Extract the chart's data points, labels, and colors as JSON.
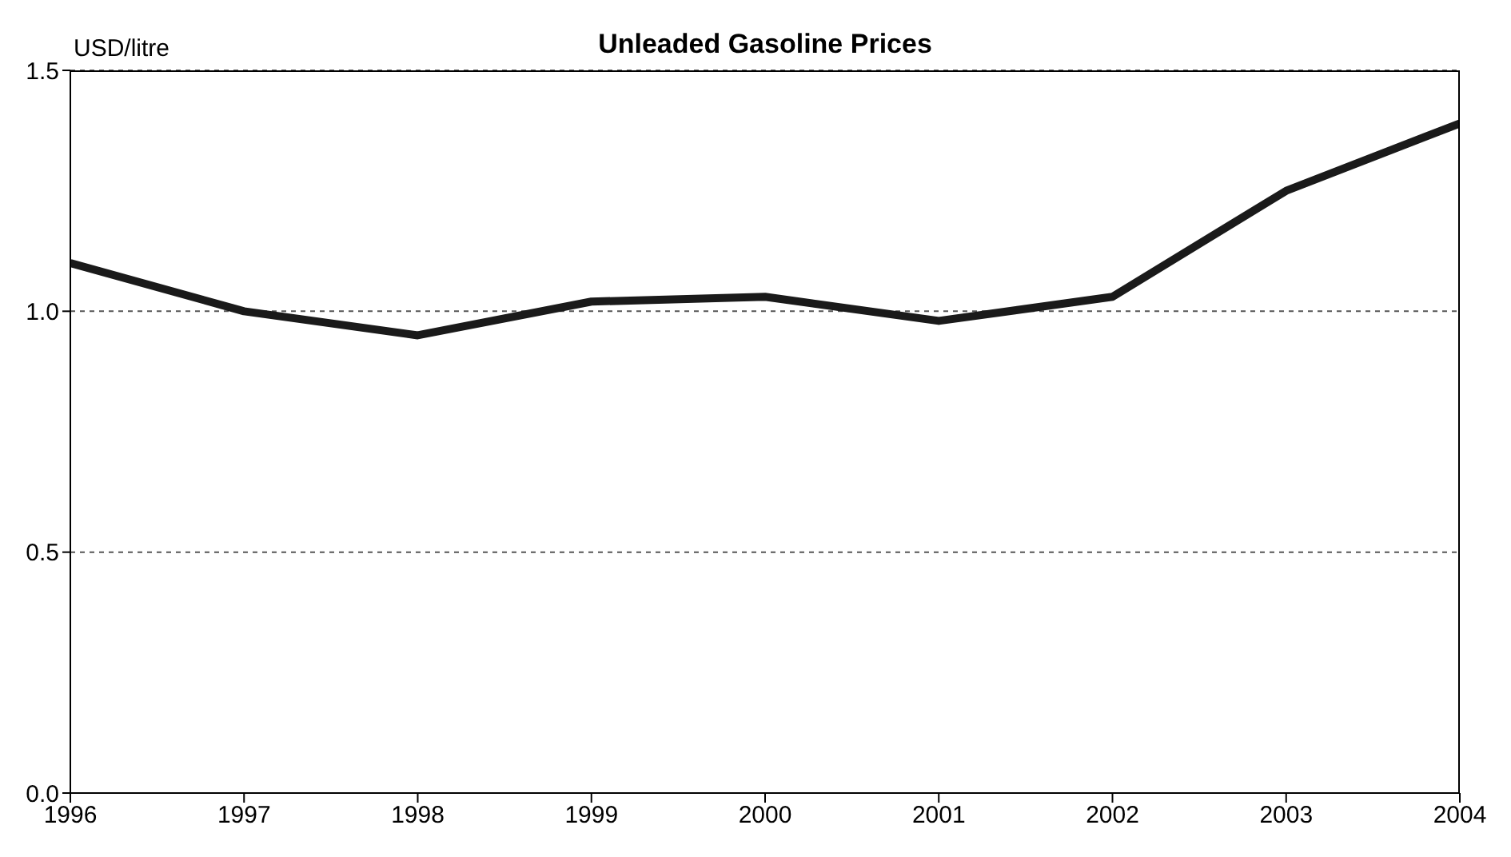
{
  "chart_data": {
    "type": "line",
    "title": "Unleaded Gasoline Prices",
    "ylabel": "USD/litre",
    "x": [
      1996,
      1997,
      1998,
      1999,
      2000,
      2001,
      2002,
      2003,
      2004
    ],
    "series": [
      {
        "color": "#1a1a1a",
        "values": [
          1.1,
          1.0,
          0.95,
          1.02,
          1.03,
          0.98,
          1.03,
          1.25,
          1.39
        ]
      }
    ],
    "xlim": [
      1996,
      2004
    ],
    "xticks": [
      1996,
      1997,
      1998,
      1999,
      2000,
      2001,
      2002,
      2003,
      2004
    ],
    "ylim": [
      0,
      1.5
    ],
    "yticks": [
      {
        "value": 0,
        "label": "0.0"
      },
      0.5,
      {
        "value": 1,
        "label": "1.0"
      },
      1.5
    ],
    "grid": "y",
    "legend": false,
    "marker": "none",
    "line_style": "solid"
  }
}
